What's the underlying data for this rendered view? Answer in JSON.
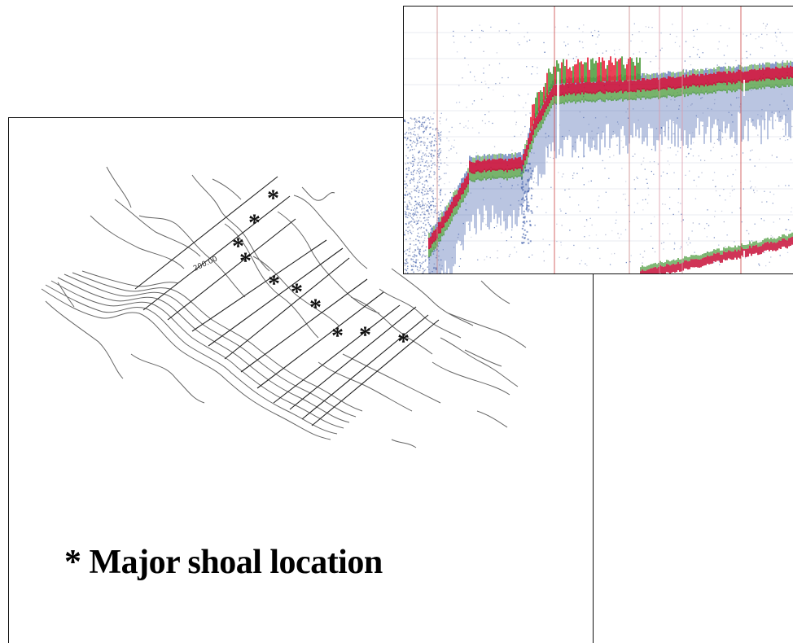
{
  "map": {
    "depth_label": "200.00",
    "shoal_marker": "*",
    "legend_text": "* Major shoal location",
    "transect_count": 12,
    "shoal_count": 11
  },
  "echogram": {
    "colors": {
      "strong": "#c8103a",
      "red": "#e8203a",
      "green": "#4a9a3a",
      "blue": "#3a5aa8",
      "gray": "#8a93b8"
    }
  }
}
